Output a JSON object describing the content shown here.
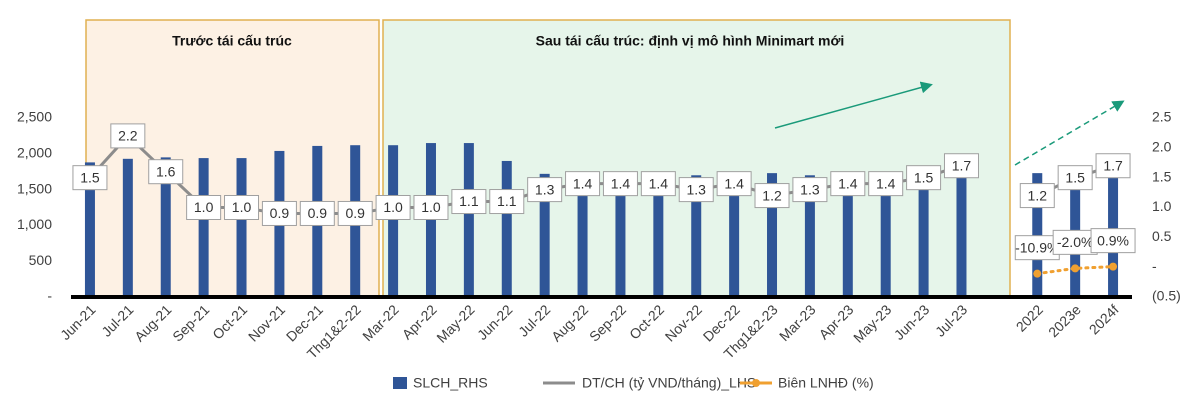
{
  "chart_data": {
    "type": "bar-line",
    "annotations": [
      "Trước tái cấu trúc",
      "Sau tái cấu trúc: định vị mô hình Minimart mới"
    ],
    "categories": [
      "Jun-21",
      "Jul-21",
      "Aug-21",
      "Sep-21",
      "Oct-21",
      "Nov-21",
      "Dec-21",
      "Thg1&2-22",
      "Mar-22",
      "Apr-22",
      "May-22",
      "Jun-22",
      "Jul-22",
      "Aug-22",
      "Sep-22",
      "Oct-22",
      "Nov-22",
      "Dec-22",
      "Thg1&2-23",
      "Mar-23",
      "Apr-23",
      "May-23",
      "Jun-23",
      "Jul-23",
      null,
      "2022",
      "2023e",
      "2024f"
    ],
    "ylim": [
      0,
      2500
    ],
    "yticks": [
      {
        "value": 0,
        "label": "-"
      },
      500,
      {
        "value": 1000,
        "label": "1,000"
      },
      {
        "value": 1500,
        "label": "1,500"
      },
      {
        "value": 2000,
        "label": "2,000"
      },
      {
        "value": 2500,
        "label": "2,500"
      }
    ],
    "y2lim": [
      -0.5,
      2.5
    ],
    "y2ticks": [
      {
        "value": -0.5,
        "label": "(0.5)"
      },
      {
        "value": 0,
        "label": "-"
      },
      0.5,
      {
        "value": 1,
        "label": "1.0"
      },
      1.5,
      {
        "value": 2,
        "label": "2.0"
      },
      2.5
    ],
    "series": [
      {
        "name": "SLCH_RHS",
        "kind": "bar",
        "color": "#2f5597",
        "values": [
          1880,
          1930,
          1950,
          1940,
          1940,
          2040,
          2110,
          2120,
          2120,
          2150,
          2150,
          1900,
          1720,
          1700,
          1700,
          1700,
          1700,
          1690,
          1730,
          1700,
          1700,
          1700,
          1700,
          1700,
          null,
          1730,
          1700,
          1700
        ]
      },
      {
        "name": "DT/CH (tỷ VND/tháng)_LHS",
        "kind": "line",
        "axis": "y2",
        "color": "#8c8c8c",
        "values": [
          1.5,
          2.2,
          1.6,
          1.0,
          1.0,
          0.9,
          0.9,
          0.9,
          1.0,
          1.0,
          1.1,
          1.1,
          1.3,
          1.4,
          1.4,
          1.4,
          1.3,
          1.4,
          1.2,
          1.3,
          1.4,
          1.4,
          1.5,
          1.7,
          null,
          1.2,
          1.5,
          1.7
        ],
        "value_labels": [
          "1.5",
          "2.2",
          "1.6",
          "1.0",
          "1.0",
          "0.9",
          "0.9",
          "0.9",
          "1.0",
          "1.0",
          "1.1",
          "1.1",
          "1.3",
          "1.4",
          "1.4",
          "1.4",
          "1.3",
          "1.4",
          "1.2",
          "1.3",
          "1.4",
          "1.4",
          "1.5",
          "1.7",
          null,
          "1.2",
          "1.5",
          "1.7"
        ]
      },
      {
        "name": "Biên LNHĐ (%)",
        "kind": "dotted",
        "axis": "y2",
        "color": "#f0a030",
        "values": [
          null,
          null,
          null,
          null,
          null,
          null,
          null,
          null,
          null,
          null,
          null,
          null,
          null,
          null,
          null,
          null,
          null,
          null,
          null,
          null,
          null,
          null,
          null,
          null,
          null,
          -10.9,
          -2.0,
          0.9
        ],
        "value_labels": [
          null,
          null,
          null,
          null,
          null,
          null,
          null,
          null,
          null,
          null,
          null,
          null,
          null,
          null,
          null,
          null,
          null,
          null,
          null,
          null,
          null,
          null,
          null,
          null,
          null,
          "-10.9%",
          "-2.0%",
          "0.9%"
        ]
      }
    ],
    "grid": false
  }
}
